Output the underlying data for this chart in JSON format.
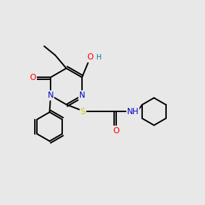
{
  "background_color": "#e8e8e8",
  "atom_colors": {
    "C": "#000000",
    "N": "#0000cd",
    "O": "#ff0000",
    "S": "#cccc00",
    "H": "#008080"
  },
  "bond_width": 1.5,
  "font_size": 8.5
}
